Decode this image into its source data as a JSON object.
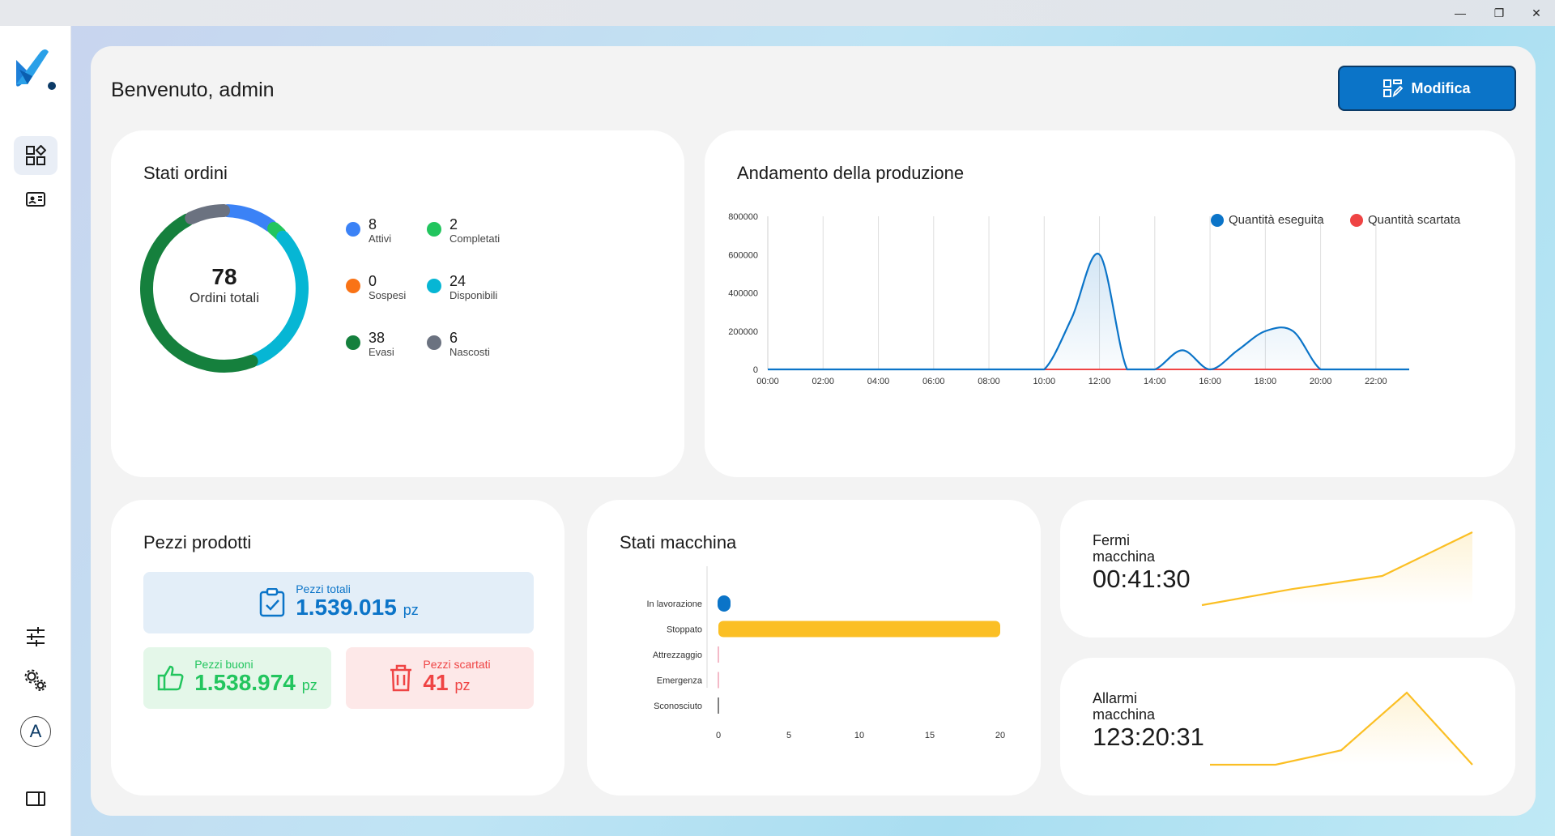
{
  "window": {
    "minimize_icon": "—",
    "restore_icon": "❐",
    "close_icon": "✕"
  },
  "header": {
    "welcome": "Benvenuto, admin",
    "edit_label": "Modifica"
  },
  "colors": {
    "accent": "#0b74c8",
    "attivi": "#3b82f6",
    "completati": "#22c55e",
    "sospesi": "#f97316",
    "disponibili": "#06b6d4",
    "evasi": "#15803d",
    "nascosti": "#6b7280",
    "eseguita": "#0b74c8",
    "scartata": "#ef4444",
    "stoppato": "#fbbf24"
  },
  "orders": {
    "title": "Stati ordini",
    "total": "78",
    "total_label": "Ordini totali",
    "items": [
      {
        "count": "8",
        "label": "Attivi",
        "color": "#3b82f6"
      },
      {
        "count": "2",
        "label": "Completati",
        "color": "#22c55e"
      },
      {
        "count": "0",
        "label": "Sospesi",
        "color": "#f97316"
      },
      {
        "count": "24",
        "label": "Disponibili",
        "color": "#06b6d4"
      },
      {
        "count": "38",
        "label": "Evasi",
        "color": "#15803d"
      },
      {
        "count": "6",
        "label": "Nascosti",
        "color": "#6b7280"
      }
    ]
  },
  "production": {
    "title": "Andamento della produzione",
    "legend": [
      "Quantità eseguita",
      "Quantità scartata"
    ]
  },
  "pieces": {
    "title": "Pezzi prodotti",
    "total_label": "Pezzi totali",
    "total_value": "1.539.015",
    "unit": "pz",
    "good_label": "Pezzi buoni",
    "good_value": "1.538.974",
    "scrap_label": "Pezzi scartati",
    "scrap_value": "41"
  },
  "machine": {
    "title": "Stati macchina"
  },
  "downtime": {
    "title": "Fermi macchina",
    "value": "00:41:30"
  },
  "alarms": {
    "title": "Allarmi macchina",
    "value": "123:20:31"
  },
  "sidebar": {
    "user_initial": "A"
  },
  "chart_data": [
    {
      "type": "donut",
      "title": "Stati ordini",
      "categories": [
        "Attivi",
        "Completati",
        "Sospesi",
        "Disponibili",
        "Evasi",
        "Nascosti"
      ],
      "values": [
        8,
        2,
        0,
        24,
        38,
        6
      ]
    },
    {
      "type": "line",
      "title": "Andamento della produzione",
      "x": [
        "00:00",
        "01:00",
        "02:00",
        "03:00",
        "04:00",
        "05:00",
        "06:00",
        "07:00",
        "08:00",
        "09:00",
        "10:00",
        "11:00",
        "12:00",
        "13:00",
        "14:00",
        "15:00",
        "16:00",
        "17:00",
        "18:00",
        "19:00",
        "20:00",
        "21:00",
        "22:00",
        "23:00"
      ],
      "x_ticks": [
        "00:00",
        "02:00",
        "04:00",
        "06:00",
        "08:00",
        "10:00",
        "12:00",
        "14:00",
        "16:00",
        "18:00",
        "20:00",
        "22:00"
      ],
      "y_ticks": [
        0,
        200000,
        400000,
        600000,
        800000
      ],
      "ylim": [
        0,
        800000
      ],
      "series": [
        {
          "name": "Quantità eseguita",
          "values": [
            0,
            0,
            0,
            0,
            0,
            0,
            0,
            0,
            0,
            0,
            0,
            270000,
            600000,
            0,
            0,
            100000,
            0,
            100000,
            200000,
            200000,
            0,
            0,
            0,
            0
          ]
        },
        {
          "name": "Quantità scartata",
          "values": [
            0,
            0,
            0,
            0,
            0,
            0,
            0,
            0,
            0,
            0,
            0,
            0,
            0,
            0,
            0,
            0,
            0,
            0,
            0,
            0,
            0,
            0,
            0,
            0
          ]
        }
      ],
      "legend_position": "top-right"
    },
    {
      "type": "bar",
      "orientation": "horizontal",
      "title": "Stati macchina",
      "categories": [
        "In lavorazione",
        "Stoppato",
        "Attrezzaggio",
        "Emergenza",
        "Sconosciuto"
      ],
      "values": [
        0.4,
        20,
        0,
        0,
        0
      ],
      "x_ticks": [
        0,
        5,
        10,
        15,
        20
      ],
      "xlim": [
        0,
        20
      ]
    },
    {
      "type": "area",
      "title": "Fermi macchina",
      "values": [
        0,
        0.22,
        0.4,
        1.0
      ]
    },
    {
      "type": "area",
      "title": "Allarmi macchina",
      "values": [
        0,
        0,
        0.2,
        1.0,
        0
      ]
    }
  ]
}
